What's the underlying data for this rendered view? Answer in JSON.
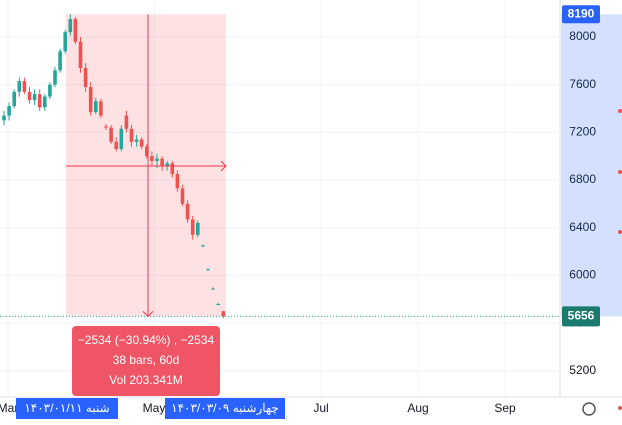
{
  "chart_data": {
    "type": "candlestick",
    "ohlc": [
      [
        7300,
        7380,
        7260,
        7340
      ],
      [
        7340,
        7450,
        7300,
        7420
      ],
      [
        7420,
        7560,
        7400,
        7540
      ],
      [
        7540,
        7660,
        7500,
        7630
      ],
      [
        7630,
        7660,
        7520,
        7540
      ],
      [
        7540,
        7580,
        7440,
        7470
      ],
      [
        7470,
        7560,
        7430,
        7520
      ],
      [
        7520,
        7560,
        7380,
        7410
      ],
      [
        7410,
        7520,
        7380,
        7500
      ],
      [
        7500,
        7620,
        7480,
        7600
      ],
      [
        7600,
        7750,
        7580,
        7720
      ],
      [
        7720,
        7900,
        7700,
        7880
      ],
      [
        7880,
        8060,
        7860,
        8040
      ],
      [
        8040,
        8190,
        8010,
        8150
      ],
      [
        8150,
        8170,
        7940,
        7960
      ],
      [
        7960,
        8000,
        7700,
        7740
      ],
      [
        7740,
        7780,
        7540,
        7580
      ],
      [
        7580,
        7620,
        7340,
        7370
      ],
      [
        7370,
        7490,
        7350,
        7460
      ],
      [
        7460,
        7480,
        7320,
        7340
      ],
      [
        7250,
        7270,
        7220,
        7240
      ],
      [
        7240,
        7260,
        7100,
        7120
      ],
      [
        7120,
        7160,
        7040,
        7060
      ],
      [
        7060,
        7260,
        7040,
        7230
      ],
      [
        7340,
        7380,
        7200,
        7230
      ],
      [
        7230,
        7260,
        7080,
        7120
      ],
      [
        7120,
        7180,
        7080,
        7140
      ],
      [
        7140,
        7160,
        7060,
        7080
      ],
      [
        7080,
        7100,
        6980,
        7000
      ],
      [
        7000,
        7040,
        6920,
        6960
      ],
      [
        6960,
        7020,
        6900,
        6980
      ],
      [
        6980,
        7000,
        6880,
        6920
      ],
      [
        6920,
        6960,
        6880,
        6940
      ],
      [
        6940,
        6960,
        6820,
        6850
      ],
      [
        6850,
        6880,
        6700,
        6730
      ],
      [
        6730,
        6760,
        6580,
        6600
      ],
      [
        6600,
        6630,
        6440,
        6470
      ],
      [
        6470,
        6500,
        6300,
        6340
      ],
      [
        6340,
        6460,
        6320,
        6440
      ],
      [
        6250,
        6260,
        6240,
        6250
      ],
      [
        6050,
        6060,
        6040,
        6050
      ],
      [
        5890,
        5900,
        5880,
        5890
      ],
      [
        5760,
        5770,
        5750,
        5760
      ],
      [
        5700,
        5700,
        5640,
        5656
      ]
    ],
    "up_color": "#26a69a",
    "down_color": "#ef5350",
    "ylim": [
      4980,
      8310
    ],
    "yticks": [
      5200,
      5600,
      6000,
      6400,
      6800,
      7200,
      7600,
      8000
    ],
    "x_labels": [
      "Mar",
      "May",
      "Jul",
      "Aug",
      "Sep"
    ],
    "range": {
      "high": 8190,
      "low": 5656
    },
    "last_price": 5656,
    "measure": {
      "change": "−2534 (−30.94%) , −2534",
      "bars": "38 bars, 60d",
      "volume": "Vol 203.341M"
    },
    "start_date": "شنبه ۱۴۰۳/۰۱/۱۱",
    "end_date": "چهارشنبه ۱۴۰۳/۰۳/۰۹"
  }
}
